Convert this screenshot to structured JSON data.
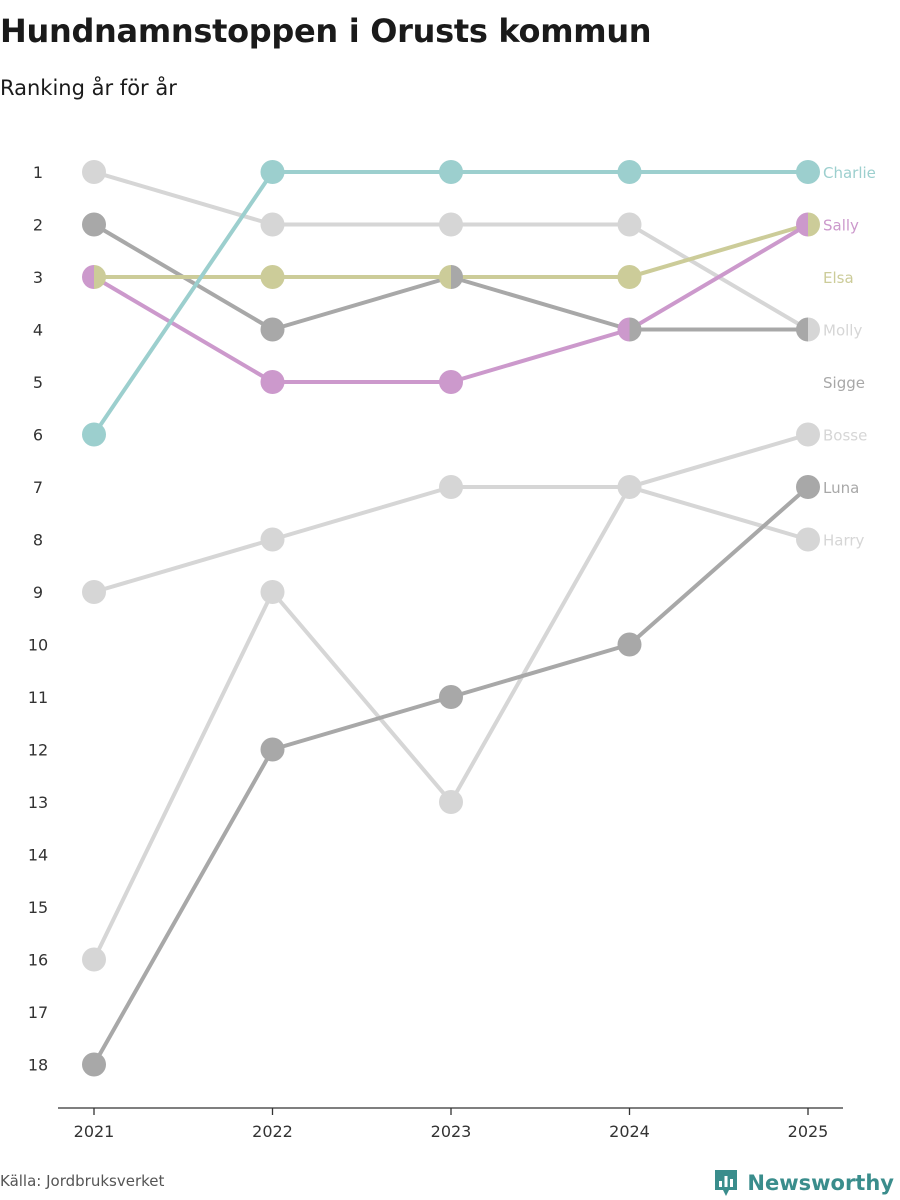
{
  "title": "Hundnamnstoppen i Orusts kommun",
  "subtitle": "Ranking år för år",
  "source": "Källa: Jordbruksverket",
  "brand": "Newsworthy",
  "chart_data": {
    "type": "line",
    "subtype": "bump",
    "x": [
      "2021",
      "2022",
      "2023",
      "2024",
      "2025"
    ],
    "y_ticks": [
      1,
      2,
      3,
      4,
      5,
      6,
      7,
      8,
      9,
      10,
      11,
      12,
      13,
      14,
      15,
      16,
      17,
      18
    ],
    "y_reversed": true,
    "ylim": [
      1,
      18
    ],
    "series": [
      {
        "name": "Charlie",
        "color": "#9ccfce",
        "values": [
          6,
          1,
          1,
          1,
          1
        ],
        "label_color": "#9ccfce",
        "show_label": true
      },
      {
        "name": "Sally",
        "color": "#cc99cc",
        "values": [
          3,
          5,
          5,
          4,
          2
        ],
        "label_color": "#cc99cc",
        "show_label": true
      },
      {
        "name": "Elsa",
        "color": "#cccc99",
        "values": [
          3,
          3,
          3,
          3,
          2
        ],
        "label_color": "#cccc99",
        "show_label": true
      },
      {
        "name": "Molly",
        "color": "#d6d6d6",
        "values": [
          1,
          2,
          2,
          2,
          4
        ],
        "label_color": "#d6d6d6",
        "show_label": true
      },
      {
        "name": "Sigge",
        "color": "#a8a8a8",
        "values": [
          2,
          4,
          3,
          4,
          4
        ],
        "label_color": "#a8a8a8",
        "show_label": true
      },
      {
        "name": "Bosse",
        "color": "#d6d6d6",
        "values": [
          9,
          8,
          7,
          7,
          6
        ],
        "label_color": "#d6d6d6",
        "show_label": true
      },
      {
        "name": "Luna",
        "color": "#a8a8a8",
        "values": [
          18,
          12,
          11,
          10,
          7
        ],
        "label_color": "#a8a8a8",
        "show_label": true
      },
      {
        "name": "Harry",
        "color": "#d6d6d6",
        "values": [
          16,
          9,
          13,
          7,
          8
        ],
        "label_color": "#d6d6d6",
        "show_label": true
      }
    ],
    "end_labels": [
      {
        "name": "Charlie",
        "rank": 1,
        "color": "#9ccfce"
      },
      {
        "name": "Sally",
        "rank": 2,
        "color": "#cc99cc"
      },
      {
        "name": "Elsa",
        "rank": 3,
        "color": "#cccc99"
      },
      {
        "name": "Molly",
        "rank": 4,
        "color": "#d6d6d6"
      },
      {
        "name": "Sigge",
        "rank": 5,
        "color": "#a8a8a8"
      },
      {
        "name": "Bosse",
        "rank": 6,
        "color": "#d6d6d6"
      },
      {
        "name": "Luna",
        "rank": 7,
        "color": "#a8a8a8"
      },
      {
        "name": "Harry",
        "rank": 8,
        "color": "#d6d6d6"
      }
    ]
  }
}
